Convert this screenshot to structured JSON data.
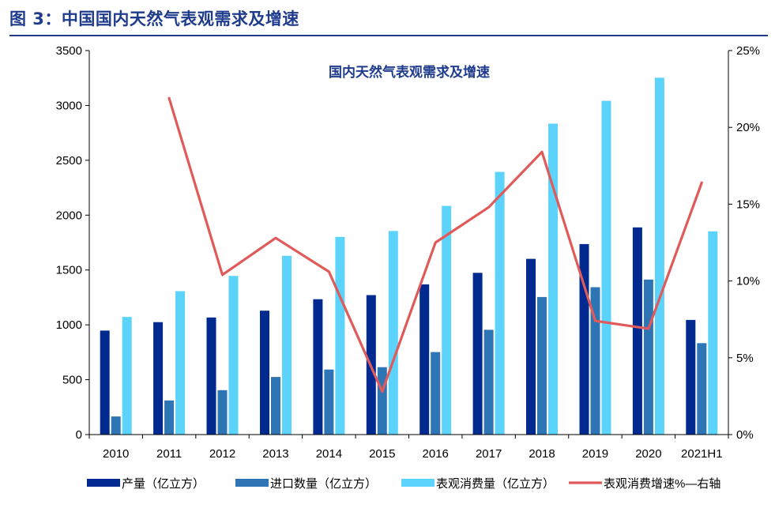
{
  "figure": {
    "title": "图 3：中国国内天然气表观需求及增速"
  },
  "chart_data": {
    "type": "bar",
    "title": "国内天然气表观需求及增速",
    "categories": [
      "2010",
      "2011",
      "2012",
      "2013",
      "2014",
      "2015",
      "2016",
      "2017",
      "2018",
      "2019",
      "2020",
      "2021H1"
    ],
    "series": [
      {
        "name": "产量（亿立方）",
        "type": "bar",
        "axis": "left",
        "color": "#002A8F",
        "values": [
          948,
          1025,
          1067,
          1129,
          1234,
          1271,
          1369,
          1474,
          1602,
          1736,
          1888,
          1045
        ]
      },
      {
        "name": "进口数量（亿立方）",
        "type": "bar",
        "axis": "left",
        "color": "#2E75B6",
        "values": [
          165,
          311,
          405,
          525,
          593,
          614,
          752,
          955,
          1254,
          1343,
          1413,
          833
        ]
      },
      {
        "name": "表观消费量（亿立方）",
        "type": "bar",
        "axis": "left",
        "color": "#5BD3FA",
        "values": [
          1072,
          1307,
          1446,
          1630,
          1802,
          1855,
          2084,
          2394,
          2834,
          3042,
          3252,
          1852
        ]
      },
      {
        "name": "表观消费增速%—右轴",
        "type": "line",
        "axis": "right",
        "color": "#E05A5A",
        "values": [
          null,
          21.9,
          10.4,
          12.8,
          10.6,
          2.8,
          12.5,
          14.8,
          18.4,
          7.4,
          6.9,
          16.4
        ]
      }
    ],
    "y_left": {
      "min": 0,
      "max": 3500,
      "ticks": [
        0,
        500,
        1000,
        1500,
        2000,
        2500,
        3000,
        3500
      ]
    },
    "y_right": {
      "min": 0,
      "max": 25,
      "ticks": [
        "0%",
        "5%",
        "10%",
        "15%",
        "20%",
        "25%"
      ]
    },
    "legend_position": "bottom",
    "grid": false
  }
}
